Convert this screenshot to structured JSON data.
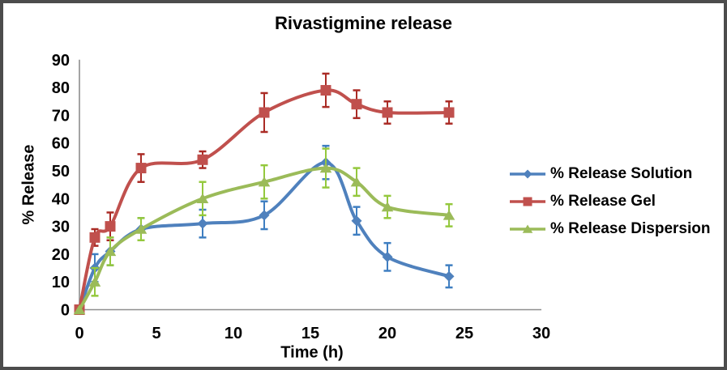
{
  "chart_data": {
    "type": "line",
    "title": "Rivastigmine release",
    "xlabel": "Time (h)",
    "ylabel": "% Release",
    "xlim": [
      0,
      30
    ],
    "ylim": [
      0,
      90
    ],
    "x_ticks": [
      0,
      5,
      10,
      15,
      20,
      25,
      30
    ],
    "y_ticks": [
      0,
      10,
      20,
      30,
      40,
      50,
      60,
      70,
      80,
      90
    ],
    "grid": false,
    "legend_position": "right",
    "error_bars": true,
    "axis_color": "#8e8e8e",
    "x": [
      0,
      1,
      2,
      4,
      8,
      12,
      16,
      18,
      20,
      24
    ],
    "series": [
      {
        "id": "solution",
        "name": "% Release Solution",
        "marker": "diamond",
        "color": "#4F81BD",
        "error_color": "#3E7EC1",
        "values": [
          0,
          15,
          21,
          29,
          31,
          34,
          53,
          32,
          19,
          12
        ],
        "errors": [
          0,
          5,
          5,
          4,
          5,
          5,
          6,
          5,
          5,
          4
        ]
      },
      {
        "id": "gel",
        "name": "% Release Gel",
        "marker": "square",
        "color": "#C0504D",
        "error_color": "#AA2B25",
        "values": [
          0,
          26,
          30,
          51,
          54,
          71,
          79,
          74,
          71,
          71
        ],
        "errors": [
          0,
          3,
          5,
          5,
          3,
          7,
          6,
          5,
          4,
          4
        ]
      },
      {
        "id": "dispersion",
        "name": "% Release Dispersion",
        "marker": "triangle",
        "color": "#9BBB59",
        "error_color": "#94C83D",
        "values": [
          0,
          10,
          21,
          29,
          40,
          46,
          51,
          46,
          37,
          34
        ],
        "errors": [
          0,
          5,
          5,
          4,
          6,
          6,
          7,
          5,
          4,
          4
        ]
      }
    ]
  }
}
